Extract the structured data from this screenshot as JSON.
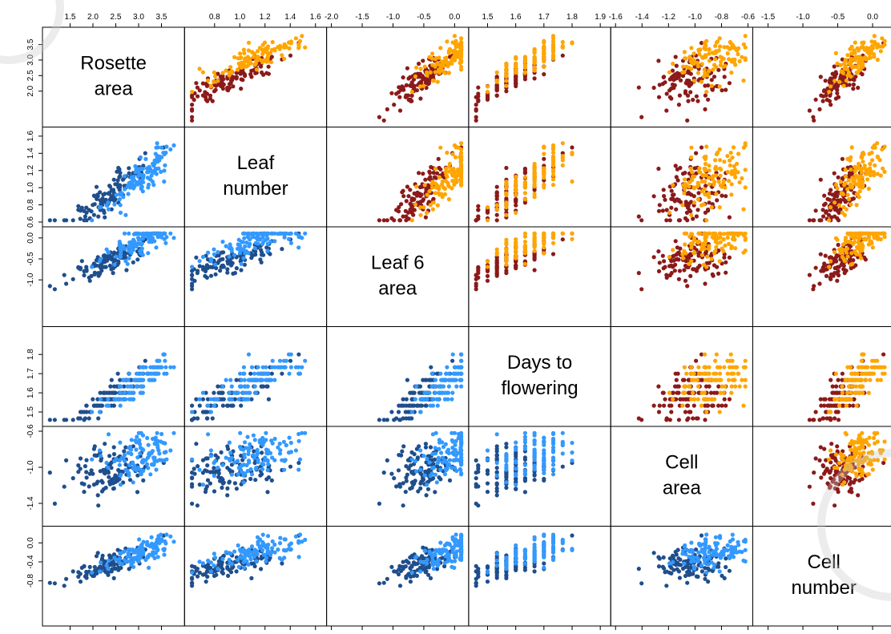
{
  "colors": {
    "upper_dark": "#8b1a1a",
    "upper_light": "#ffa500",
    "lower_dark": "#1f4e8c",
    "lower_light": "#3399ff"
  },
  "chart_data": {
    "type": "scatter",
    "variables": [
      {
        "label_lines": [
          "Rosette",
          "area"
        ],
        "range": [
          1.0,
          3.9
        ],
        "ticks": [
          "1.5",
          "2.0",
          "2.5",
          "3.0",
          "3.5"
        ],
        "left_ticks": [
          "2.0",
          "2.5",
          "3.0",
          "3.5"
        ],
        "tick_values": [
          1.5,
          2.0,
          2.5,
          3.0,
          3.5
        ],
        "left_tick_values": [
          2.0,
          2.5,
          3.0,
          3.5
        ]
      },
      {
        "label_lines": [
          "Leaf",
          "number"
        ],
        "range": [
          0.6,
          1.65
        ],
        "ticks": [
          "0.8",
          "1.0",
          "1.2",
          "1.4",
          "1.6"
        ],
        "left_ticks": [
          "0.6",
          "0.8",
          "1.0",
          "1.2",
          "1.4",
          "1.6"
        ],
        "tick_values": [
          0.8,
          1.0,
          1.2,
          1.4,
          1.6
        ],
        "left_tick_values": [
          0.6,
          0.8,
          1.0,
          1.2,
          1.4,
          1.6
        ]
      },
      {
        "label_lines": [
          "Leaf 6",
          "area"
        ],
        "range": [
          -2.0,
          0.15
        ],
        "ticks": [
          "-2.0",
          "-1.5",
          "-1.0",
          "-0.5",
          "0.0"
        ],
        "left_ticks": [
          "-1.0",
          "-0.5",
          "0.0"
        ],
        "tick_values": [
          -2.0,
          -1.5,
          -1.0,
          -0.5,
          0.0
        ],
        "left_tick_values": [
          -1.0,
          -0.5,
          0.0
        ]
      },
      {
        "label_lines": [
          "Days to",
          "flowering"
        ],
        "range": [
          1.45,
          1.92
        ],
        "ticks": [
          "1.5",
          "1.6",
          "1.7",
          "1.8",
          "1.9"
        ],
        "left_ticks": [
          "1.5",
          "1.6",
          "1.7",
          "1.8"
        ],
        "tick_values": [
          1.5,
          1.6,
          1.7,
          1.8,
          1.9
        ],
        "left_tick_values": [
          1.5,
          1.6,
          1.7,
          1.8
        ]
      },
      {
        "label_lines": [
          "Cell",
          "area"
        ],
        "range": [
          -1.6,
          -0.6
        ],
        "ticks": [
          "-1.6",
          "-1.4",
          "-1.2",
          "-1.0",
          "-0.8",
          "-0.6"
        ],
        "left_ticks": [
          "-1.4",
          "-1.0",
          "-0.6"
        ],
        "tick_values": [
          -1.6,
          -1.4,
          -1.2,
          -1.0,
          -0.8,
          -0.6
        ],
        "left_tick_values": [
          -1.4,
          -1.0,
          -0.6
        ]
      },
      {
        "label_lines": [
          "Cell",
          "number"
        ],
        "range": [
          -1.65,
          0.25
        ],
        "ticks": [
          "-1.5",
          "-1.0",
          "-0.5",
          "0.0"
        ],
        "left_ticks": [
          "-0.8",
          "-0.4",
          "0.0"
        ],
        "tick_values": [
          -1.5,
          -1.0,
          -0.5,
          0.0
        ],
        "left_tick_values": [
          -0.8,
          -0.4,
          0.0
        ]
      }
    ],
    "grid": false,
    "legend": "none",
    "points_per_group": 110
  }
}
